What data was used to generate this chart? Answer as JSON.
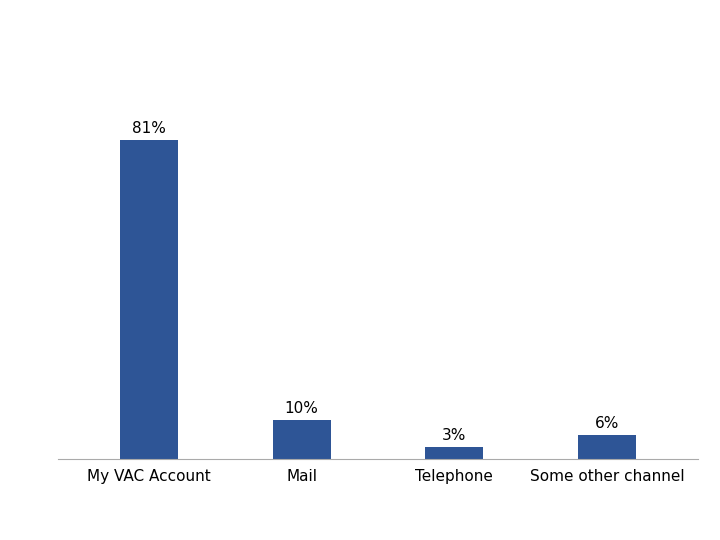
{
  "categories": [
    "My VAC Account",
    "Mail",
    "Telephone",
    "Some other channel"
  ],
  "values": [
    81,
    10,
    3,
    6
  ],
  "labels": [
    "81%",
    "10%",
    "3%",
    "6%"
  ],
  "bar_color": "#2E5596",
  "background_color": "#ffffff",
  "ylim": [
    0,
    100
  ],
  "bar_width": 0.38,
  "label_fontsize": 11,
  "tick_fontsize": 11
}
